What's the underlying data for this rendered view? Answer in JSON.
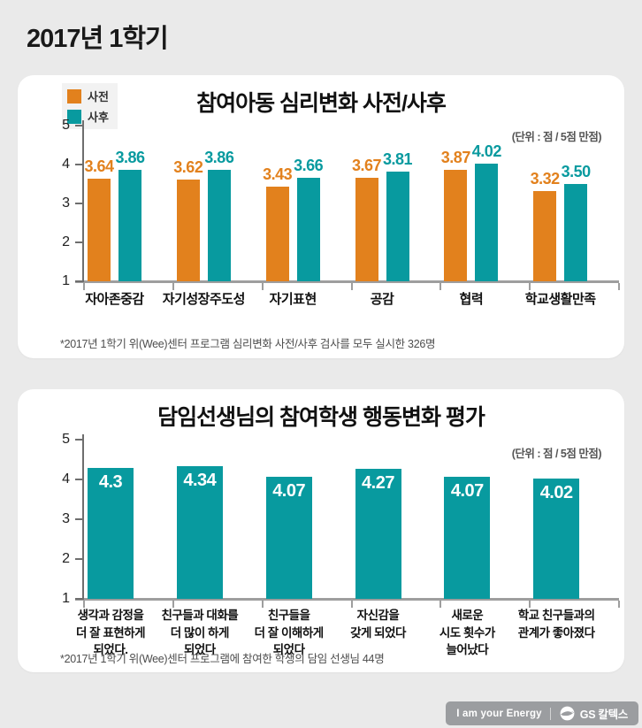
{
  "page": {
    "title": "2017년 1학기"
  },
  "footer": {
    "slogan": "I am your Energy",
    "brand": "GS 칼텍스"
  },
  "colors": {
    "pre": "#e2811d",
    "post": "#089a9f",
    "card": "#ffffff",
    "background": "#eaeaea",
    "badge": "#9b9da0"
  },
  "chart_data": [
    {
      "type": "bar",
      "title": "참여아동 심리변화 사전/사후",
      "unit_note": "(단위 : 점 / 5점 만점)",
      "legend_position": "top-left",
      "categories": [
        "자아존중감",
        "자기성장주도성",
        "자기표현",
        "공감",
        "협력",
        "학교생활만족"
      ],
      "series": [
        {
          "name": "사전",
          "color": "#e2811d",
          "values": [
            3.64,
            3.62,
            3.43,
            3.67,
            3.87,
            3.32
          ],
          "labels": [
            "3.64",
            "3.62",
            "3.43",
            "3.67",
            "3.87",
            "3.32"
          ]
        },
        {
          "name": "사후",
          "color": "#089a9f",
          "values": [
            3.86,
            3.86,
            3.66,
            3.81,
            4.02,
            3.5
          ],
          "labels": [
            "3.86",
            "3.86",
            "3.66",
            "3.81",
            "4.02",
            "3.50"
          ]
        }
      ],
      "ylim": [
        1,
        5
      ],
      "yticks": [
        1,
        2,
        3,
        4,
        5
      ],
      "grid": false,
      "footnote": "*2017년 1학기 위(Wee)센터 프로그램 심리변화 사전/사후 검사를 모두 실시한 326명"
    },
    {
      "type": "bar",
      "title": "담임선생님의 참여학생 행동변화 평가",
      "unit_note": "(단위 : 점 / 5점 만점)",
      "categories": [
        [
          "생각과 감정을",
          "더 잘 표현하게",
          "되었다."
        ],
        [
          "친구들과 대화를",
          "더 많이 하게",
          "되었다"
        ],
        [
          "친구들을",
          "더 잘 이해하게",
          "되었다"
        ],
        [
          "자신감을",
          "갖게 되었다"
        ],
        [
          "새로운",
          "시도 횟수가",
          "늘어났다"
        ],
        [
          "학교 친구들과의",
          "관계가 좋아졌다"
        ]
      ],
      "values": [
        4.3,
        4.34,
        4.07,
        4.27,
        4.07,
        4.02
      ],
      "labels": [
        "4.3",
        "4.34",
        "4.07",
        "4.27",
        "4.07",
        "4.02"
      ],
      "bar_color": "#089a9f",
      "ylim": [
        1,
        5
      ],
      "yticks": [
        1,
        2,
        3,
        4,
        5
      ],
      "grid": false,
      "footnote": "*2017년 1학기 위(Wee)센터 프로그램에 참여한 학생의 담임 선생님 44명"
    }
  ]
}
